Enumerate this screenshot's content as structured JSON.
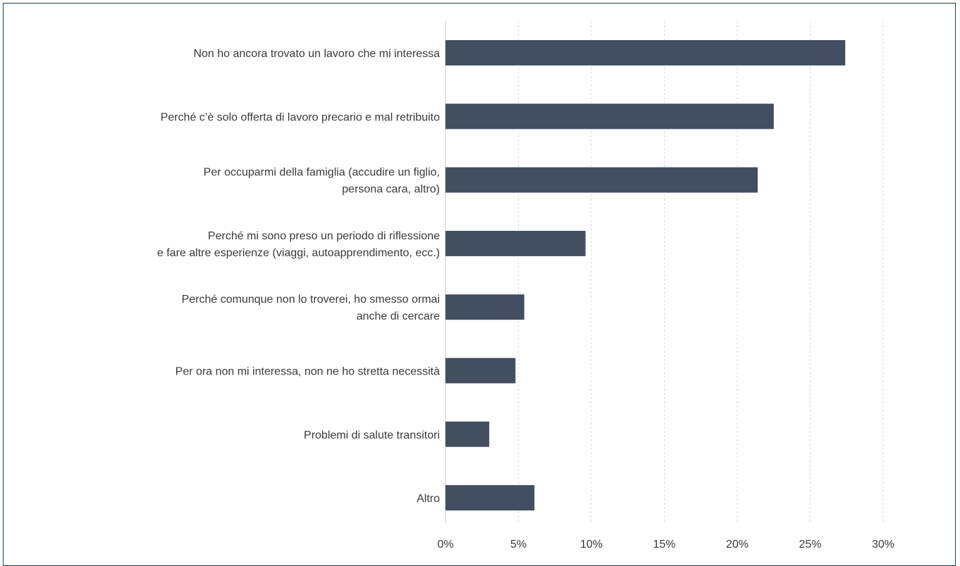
{
  "chart_data": {
    "type": "bar",
    "orientation": "horizontal",
    "title": "",
    "xlabel": "",
    "ylabel": "",
    "categories": [
      [
        "Non ho ancora trovato un lavoro che mi interessa"
      ],
      [
        "Perché c’è solo offerta di lavoro precario e mal retribuito"
      ],
      [
        "Per occuparmi della famiglia (accudire un figlio,",
        "persona cara, altro)"
      ],
      [
        "Perché mi sono preso un periodo di riflessione",
        "e fare altre esperienze (viaggi, autoapprendimento, ecc.)"
      ],
      [
        "Perché comunque non lo troverei, ho smesso ormai",
        "anche di cercare"
      ],
      [
        "Per ora non mi interessa, non ne ho stretta necessità"
      ],
      [
        "Problemi di salute transitori"
      ],
      [
        "Altro"
      ]
    ],
    "values": [
      27.4,
      22.5,
      21.4,
      9.6,
      5.4,
      4.8,
      3.0,
      6.1
    ],
    "xlim": [
      0,
      30
    ],
    "xticks": [
      0,
      5,
      10,
      15,
      20,
      25,
      30
    ],
    "xtick_labels": [
      "0%",
      "5%",
      "10%",
      "15%",
      "20%",
      "25%",
      "30%"
    ],
    "grid": true,
    "legend": "none",
    "bar_color": "#434e60"
  }
}
